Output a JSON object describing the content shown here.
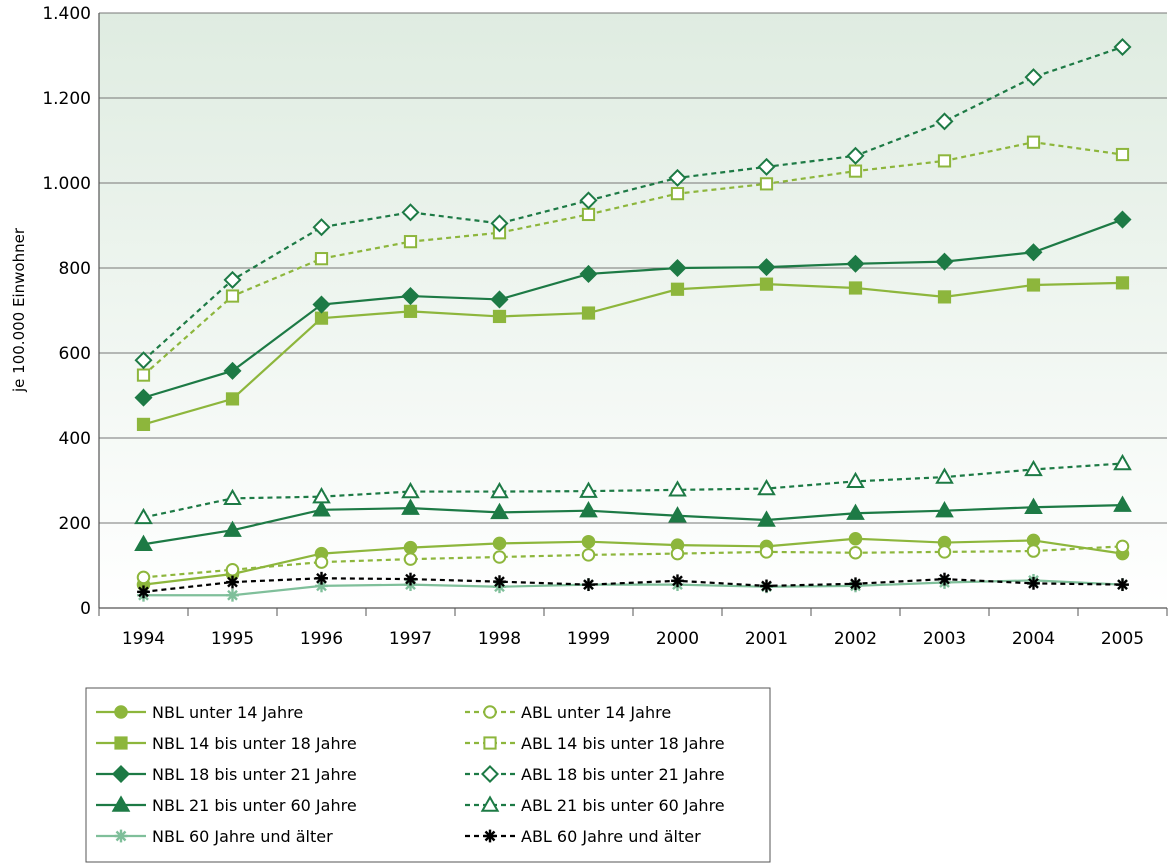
{
  "chart_data": {
    "type": "line",
    "title": "",
    "xlabel": "",
    "ylabel": "je 100.000 Einwohner",
    "x": [
      "1994",
      "1995",
      "1996",
      "1997",
      "1998",
      "1999",
      "2000",
      "2001",
      "2002",
      "2003",
      "2004",
      "2005"
    ],
    "ylim": [
      0,
      1400
    ],
    "yticks": [
      0,
      200,
      400,
      600,
      800,
      1000,
      1200,
      1400
    ],
    "ytick_labels": [
      "0",
      "200",
      "400",
      "600",
      "800",
      "1.000",
      "1.200",
      "1.400"
    ],
    "grid": "horizontal",
    "legend_position": "bottom-left",
    "background": "gradient green to white",
    "series": [
      {
        "name": "NBL unter 14 Jahre",
        "color": "#8db63c",
        "dashed": false,
        "marker": "circle",
        "filled": true,
        "values": [
          55,
          80,
          128,
          142,
          152,
          156,
          148,
          145,
          163,
          154,
          159,
          128
        ]
      },
      {
        "name": "NBL 14 bis unter 18 Jahre",
        "color": "#8db63c",
        "dashed": false,
        "marker": "square",
        "filled": true,
        "values": [
          432,
          492,
          682,
          698,
          686,
          694,
          750,
          762,
          753,
          732,
          760,
          765
        ]
      },
      {
        "name": "NBL 18 bis unter 21 Jahre",
        "color": "#1d7a45",
        "dashed": false,
        "marker": "diamond",
        "filled": true,
        "values": [
          495,
          558,
          714,
          734,
          726,
          786,
          800,
          802,
          810,
          815,
          837,
          914
        ]
      },
      {
        "name": "NBL 21 bis unter 60 Jahre",
        "color": "#1d7a45",
        "dashed": false,
        "marker": "triangle",
        "filled": true,
        "values": [
          150,
          183,
          231,
          235,
          225,
          229,
          217,
          207,
          223,
          229,
          237,
          242
        ]
      },
      {
        "name": "NBL 60 Jahre und älter",
        "color": "#7fbf9a",
        "dashed": false,
        "marker": "star",
        "filled": true,
        "values": [
          30,
          30,
          52,
          55,
          50,
          55,
          55,
          50,
          52,
          60,
          65,
          55
        ]
      },
      {
        "name": "ABL unter 14 Jahre",
        "color": "#8db63c",
        "dashed": true,
        "marker": "circle",
        "filled": false,
        "values": [
          72,
          90,
          108,
          115,
          120,
          125,
          128,
          132,
          130,
          132,
          134,
          145
        ]
      },
      {
        "name": "ABL 14 bis unter 18 Jahre",
        "color": "#8db63c",
        "dashed": true,
        "marker": "square",
        "filled": false,
        "values": [
          548,
          734,
          822,
          862,
          883,
          926,
          975,
          998,
          1028,
          1052,
          1096,
          1067
        ]
      },
      {
        "name": "ABL 18 bis unter 21 Jahre",
        "color": "#1d7a45",
        "dashed": true,
        "marker": "diamond",
        "filled": false,
        "values": [
          583,
          772,
          896,
          931,
          905,
          959,
          1012,
          1038,
          1064,
          1145,
          1249,
          1320
        ]
      },
      {
        "name": "ABL 21 bis unter 60 Jahre",
        "color": "#1d7a45",
        "dashed": true,
        "marker": "triangle",
        "filled": false,
        "values": [
          213,
          258,
          262,
          274,
          274,
          275,
          278,
          281,
          298,
          308,
          326,
          340
        ]
      },
      {
        "name": "ABL 60 Jahre und älter",
        "color": "#000000",
        "dashed": true,
        "marker": "star",
        "filled": true,
        "values": [
          38,
          61,
          70,
          68,
          62,
          55,
          64,
          52,
          57,
          68,
          58,
          55
        ]
      }
    ]
  }
}
